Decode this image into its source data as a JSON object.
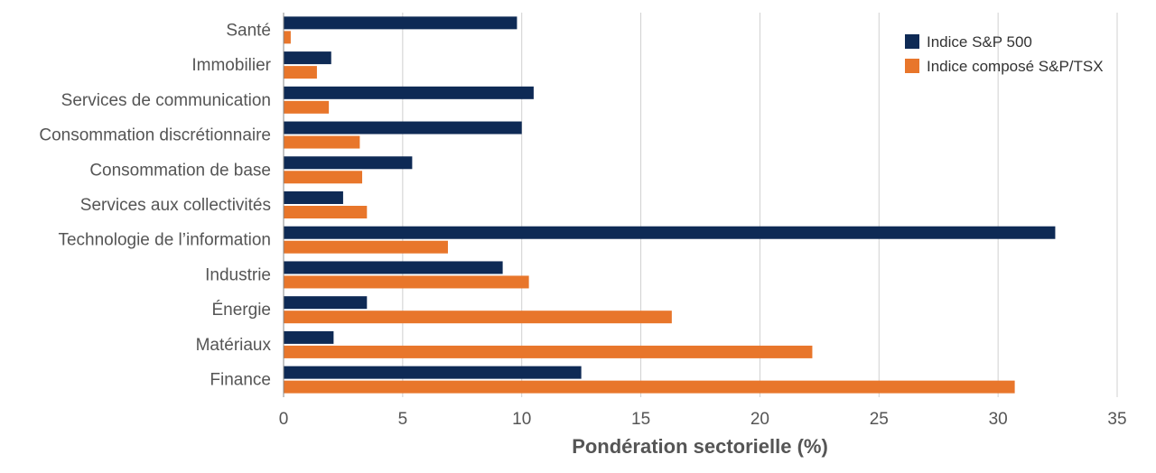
{
  "chart_data": {
    "type": "bar",
    "orientation": "horizontal",
    "categories": [
      "Santé",
      "Immobilier",
      "Services de communication",
      "Consommation discrétionnaire",
      "Consommation de base",
      "Services aux collectivités",
      "Technologie de l’information",
      "Industrie",
      "Énergie",
      "Matériaux",
      "Finance"
    ],
    "series": [
      {
        "name": "Indice S&P 500",
        "color": "#0e2a55",
        "values": [
          9.8,
          2.0,
          10.5,
          10.0,
          5.4,
          2.5,
          32.4,
          9.2,
          3.5,
          2.1,
          12.5
        ]
      },
      {
        "name": "Indice composé S&P/TSX",
        "color": "#e8762b",
        "values": [
          0.3,
          1.4,
          1.9,
          3.2,
          3.3,
          3.5,
          6.9,
          10.3,
          16.3,
          22.2,
          30.7
        ]
      }
    ],
    "xlabel": "Pondération sectorielle (%)",
    "ylabel": "",
    "xlim": [
      0,
      35
    ],
    "xticks": [
      "0",
      "5",
      "10",
      "15",
      "20",
      "25",
      "30",
      "35"
    ],
    "grid": "vertical",
    "legend_position": "top-right"
  }
}
